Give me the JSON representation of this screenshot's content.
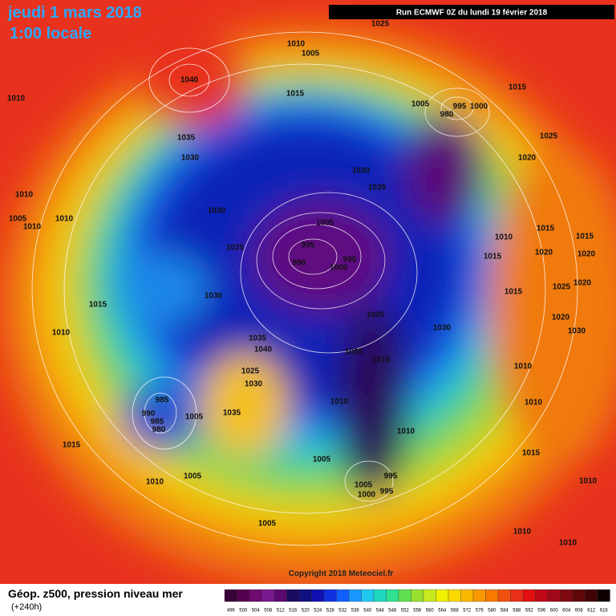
{
  "header": {
    "date": "jeudi 1 mars 2018",
    "time": "1:00 locale",
    "run": "Run ECMWF 0Z du lundi 19 février 2018"
  },
  "footer": {
    "title": "Géop. z500, pression niveau mer",
    "lead": "(+240h)",
    "copyright": "Copyright 2018 Meteociel.fr"
  },
  "legend": {
    "labels": [
      496,
      500,
      504,
      508,
      512,
      516,
      520,
      524,
      528,
      532,
      536,
      540,
      544,
      548,
      552,
      556,
      560,
      564,
      568,
      572,
      576,
      580,
      584,
      588,
      592,
      596,
      600,
      604,
      608,
      612,
      616
    ],
    "colors": [
      "#3a0038",
      "#55004f",
      "#6e0a70",
      "#7a1890",
      "#5a0a70",
      "#1a0a60",
      "#101080",
      "#1010b0",
      "#1030e0",
      "#1060ff",
      "#1898ff",
      "#20c8f0",
      "#20d8c0",
      "#30e090",
      "#60e050",
      "#98e030",
      "#c8e820",
      "#f0f000",
      "#f8d800",
      "#f8b800",
      "#f89800",
      "#f87800",
      "#f05010",
      "#e83018",
      "#e01010",
      "#c00818",
      "#a00818",
      "#800810",
      "#600808",
      "#400404",
      "#100000"
    ]
  },
  "isobar_labels": [
    "1025",
    "1010",
    "1005",
    "1040",
    "1010",
    "1015",
    "1005",
    "995",
    "1000",
    "980",
    "1015",
    "1035",
    "1030",
    "1025",
    "1020",
    "1030",
    "1035",
    "1010",
    "1005",
    "1010",
    "1010",
    "1030",
    "1005",
    "1015",
    "1015",
    "1025",
    "995",
    "990",
    "995",
    "1000",
    "1010",
    "1020",
    "1020",
    "1015",
    "1015",
    "1030",
    "1015",
    "1025",
    "1020",
    "1005",
    "1030",
    "1020",
    "1030",
    "1010",
    "1035",
    "1040",
    "1005",
    "1015",
    "1025",
    "1030",
    "1010",
    "985",
    "1010",
    "1010",
    "990",
    "985",
    "980",
    "1035",
    "1005",
    "1010",
    "1015",
    "1015",
    "1005",
    "995",
    "1005",
    "1010",
    "1005",
    "995",
    "1000",
    "1010",
    "1005",
    "1010",
    "1010"
  ]
}
